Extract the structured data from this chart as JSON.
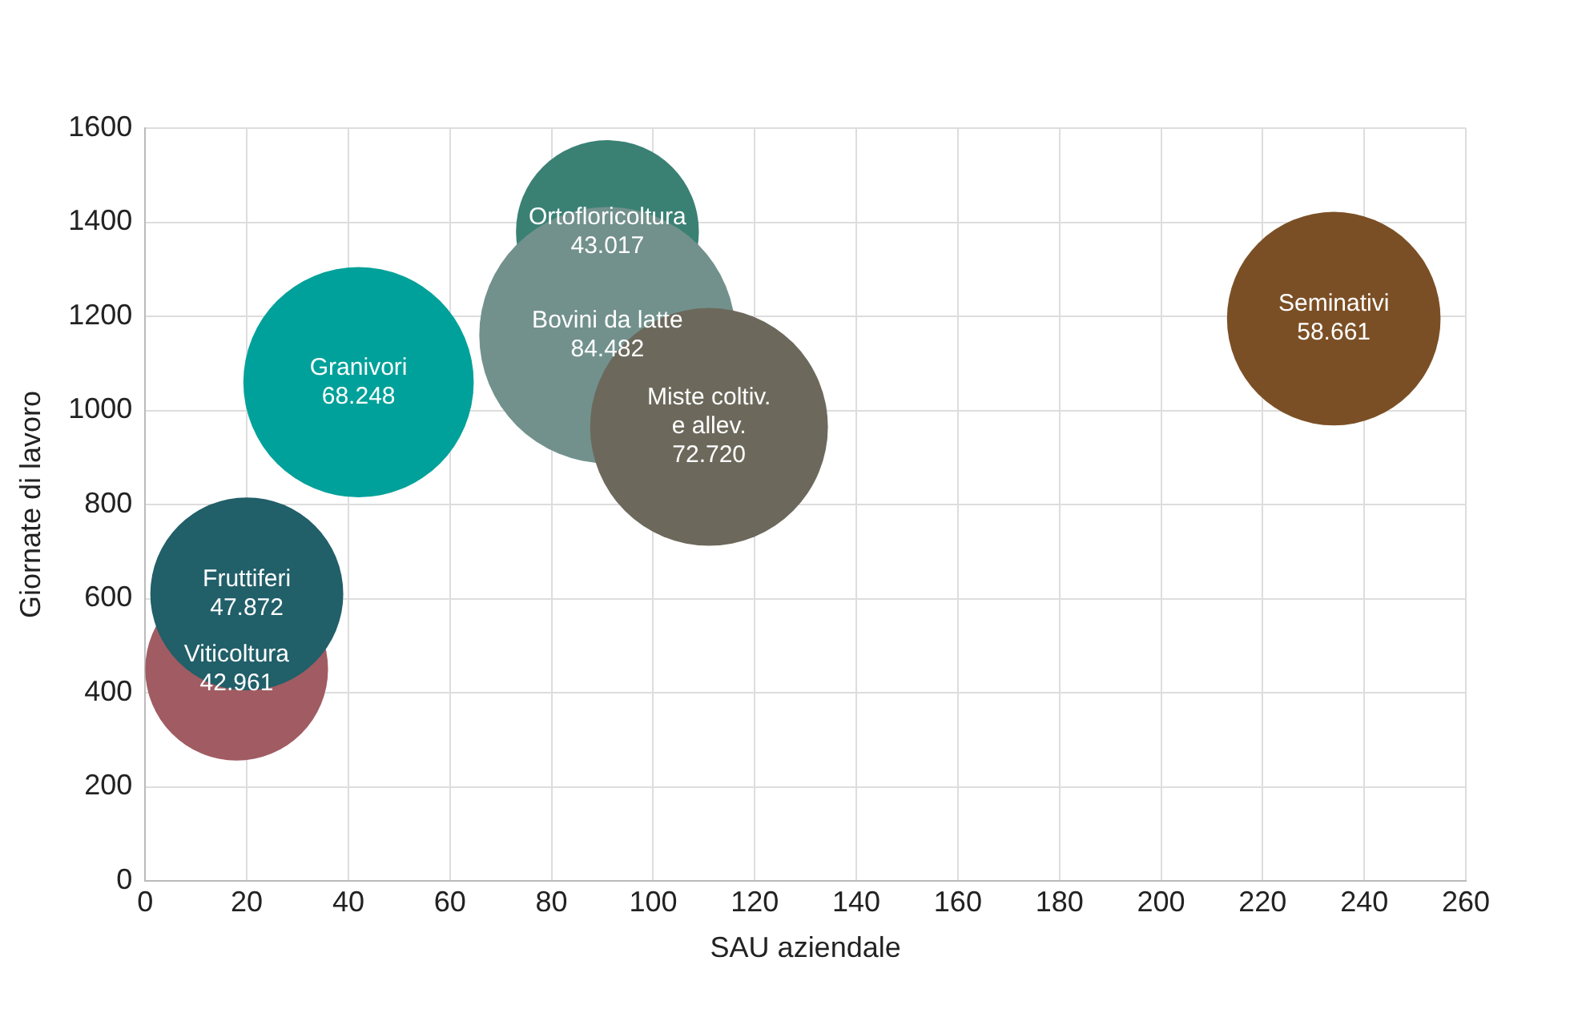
{
  "chart_data": {
    "type": "bubble",
    "xlabel": "SAU aziendale",
    "ylabel": "Giornate di lavoro",
    "xlim": [
      0,
      260
    ],
    "xticks": [
      0,
      20,
      40,
      60,
      80,
      100,
      120,
      140,
      160,
      180,
      200,
      220,
      240,
      260
    ],
    "ylim": [
      0,
      1600
    ],
    "yticks": [
      0,
      200,
      400,
      600,
      800,
      1000,
      1200,
      1400,
      1600
    ],
    "grid": true,
    "legend": false,
    "series": [
      {
        "name": "Viticoltura",
        "color": "#a05c62",
        "x": [
          18
        ],
        "values": [
          450
        ],
        "sizes": [
          42.961
        ],
        "value_labels": [
          "42.961"
        ]
      },
      {
        "name": "Fruttiferi",
        "color": "#215f69",
        "x": [
          20
        ],
        "values": [
          610
        ],
        "sizes": [
          47.872
        ],
        "value_labels": [
          "47.872"
        ]
      },
      {
        "name": "Granivori",
        "color": "#00a19a",
        "x": [
          42
        ],
        "values": [
          1060
        ],
        "sizes": [
          68.248
        ],
        "value_labels": [
          "68.248"
        ]
      },
      {
        "name": "Ortofloricoltura",
        "color": "#3a8174",
        "x": [
          91
        ],
        "values": [
          1380
        ],
        "sizes": [
          43.017
        ],
        "value_labels": [
          "43.017"
        ]
      },
      {
        "name": "Bovini da latte",
        "color": "#72918c",
        "x": [
          91
        ],
        "values": [
          1160
        ],
        "sizes": [
          84.482
        ],
        "value_labels": [
          "84.482"
        ]
      },
      {
        "name": "Miste coltiv.\ne allev.",
        "color": "#6c695c",
        "x": [
          111
        ],
        "values": [
          965
        ],
        "sizes": [
          72.72
        ],
        "value_labels": [
          "72.720"
        ]
      },
      {
        "name": "Seminativi",
        "color": "#7b4f25",
        "x": [
          234
        ],
        "values": [
          1195
        ],
        "sizes": [
          58.661
        ],
        "value_labels": [
          "58.661"
        ]
      }
    ]
  }
}
